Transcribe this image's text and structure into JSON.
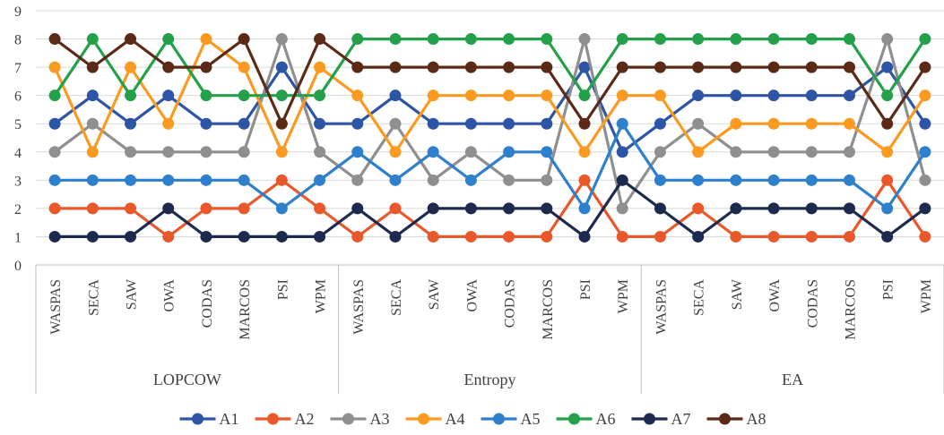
{
  "chart_data": {
    "type": "line",
    "groups": [
      {
        "name": "LOPCOW",
        "categories": [
          "WASPAS",
          "SECA",
          "SAW",
          "OWA",
          "CODAS",
          "MARCOS",
          "PSI",
          "WPM"
        ]
      },
      {
        "name": "Entropy",
        "categories": [
          "WASPAS",
          "SECA",
          "SAW",
          "OWA",
          "CODAS",
          "MARCOS",
          "PSI",
          "WPM"
        ]
      },
      {
        "name": "EA",
        "categories": [
          "WASPAS",
          "SECA",
          "SAW",
          "OWA",
          "CODAS",
          "MARCOS",
          "PSI",
          "WPM"
        ]
      }
    ],
    "ylim": [
      0,
      9
    ],
    "yticks": [
      "0",
      "1",
      "2",
      "3",
      "4",
      "5",
      "6",
      "7",
      "8",
      "9"
    ],
    "grid": true,
    "legend_position": "bottom",
    "series": [
      {
        "name": "A1",
        "color": "#2E55A5",
        "values": [
          5,
          6,
          5,
          6,
          5,
          5,
          7,
          5,
          5,
          6,
          5,
          5,
          5,
          5,
          7,
          4,
          5,
          6,
          6,
          6,
          6,
          6,
          7,
          5
        ]
      },
      {
        "name": "A2",
        "color": "#E8582A",
        "values": [
          2,
          2,
          2,
          1,
          2,
          2,
          3,
          2,
          1,
          2,
          1,
          1,
          1,
          1,
          3,
          1,
          1,
          2,
          1,
          1,
          1,
          1,
          3,
          1
        ]
      },
      {
        "name": "A3",
        "color": "#8F8F8F",
        "values": [
          4,
          5,
          4,
          4,
          4,
          4,
          8,
          4,
          3,
          5,
          3,
          4,
          3,
          3,
          8,
          2,
          4,
          5,
          4,
          4,
          4,
          4,
          8,
          3
        ]
      },
      {
        "name": "A4",
        "color": "#FA9A20",
        "values": [
          7,
          4,
          7,
          5,
          8,
          7,
          4,
          7,
          6,
          4,
          6,
          6,
          6,
          6,
          4,
          6,
          6,
          4,
          5,
          5,
          5,
          5,
          4,
          6
        ]
      },
      {
        "name": "A5",
        "color": "#2E7FCC",
        "values": [
          3,
          3,
          3,
          3,
          3,
          3,
          2,
          3,
          4,
          3,
          4,
          3,
          4,
          4,
          2,
          5,
          3,
          3,
          3,
          3,
          3,
          3,
          2,
          4
        ]
      },
      {
        "name": "A6",
        "color": "#24A04A",
        "values": [
          6,
          8,
          6,
          8,
          6,
          6,
          6,
          6,
          8,
          8,
          8,
          8,
          8,
          8,
          6,
          8,
          8,
          8,
          8,
          8,
          8,
          8,
          6,
          8
        ]
      },
      {
        "name": "A7",
        "color": "#1C2A4E",
        "values": [
          1,
          1,
          1,
          2,
          1,
          1,
          1,
          1,
          2,
          1,
          2,
          2,
          2,
          2,
          1,
          3,
          2,
          1,
          2,
          2,
          2,
          2,
          1,
          2
        ]
      },
      {
        "name": "A8",
        "color": "#5B2A17",
        "values": [
          8,
          7,
          8,
          7,
          7,
          8,
          5,
          8,
          7,
          7,
          7,
          7,
          7,
          7,
          5,
          7,
          7,
          7,
          7,
          7,
          7,
          7,
          5,
          7
        ]
      }
    ]
  }
}
